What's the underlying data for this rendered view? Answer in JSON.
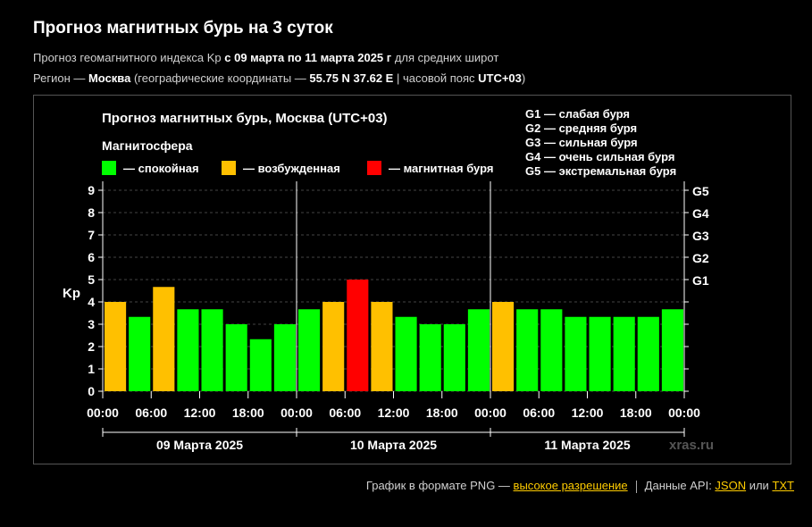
{
  "header": {
    "title": "Прогноз магнитных бурь на 3 суток",
    "line1_a": "Прогноз геомагнитного индекса Kp ",
    "line1_b": "с 09 марта по 11 марта 2025 г",
    "line1_c": " для средних широт",
    "line2_a": "Регион — ",
    "line2_b": "Москва",
    "line2_c": " (географические координаты — ",
    "line2_d": "55.75 N 37.62 E",
    "line2_e": " | часовой пояс ",
    "line2_f": "UTC+03",
    "line2_g": ")"
  },
  "footer": {
    "png_text": "График в формате PNG — ",
    "png_link": "высокое разрешение",
    "api_text": "Данные API: ",
    "json_link": "JSON",
    "or_text": " или ",
    "txt_link": "TXT"
  },
  "colors": {
    "quiet": "#00ff00",
    "unsettled": "#ffc000",
    "storm": "#ff0000",
    "background": "#000000"
  },
  "chart_data": {
    "type": "bar",
    "title": "Прогноз магнитных бурь, Москва (UTC+03)",
    "legend_title": "Магнитосфера",
    "legend": [
      {
        "key": "quiet",
        "label": "— спокойная"
      },
      {
        "key": "unsettled",
        "label": "— возбужденная"
      },
      {
        "key": "storm",
        "label": "— магнитная буря"
      }
    ],
    "g_legend": [
      "G1 — слабая буря",
      "G2 — средняя буря",
      "G3 — сильная буря",
      "G4 — очень сильная буря",
      "G5 — экстремальная буря"
    ],
    "ylabel": "Kp",
    "ylim": [
      0,
      9
    ],
    "yticks": [
      "0",
      "1",
      "2",
      "3",
      "4",
      "5",
      "6",
      "7",
      "8",
      "9"
    ],
    "right_ticks": [
      {
        "value": 5,
        "label": "G1"
      },
      {
        "value": 6,
        "label": "G2"
      },
      {
        "value": 7,
        "label": "G3"
      },
      {
        "value": 8,
        "label": "G4"
      },
      {
        "value": 9,
        "label": "G5"
      }
    ],
    "xtick_labels": [
      "00:00",
      "06:00",
      "12:00",
      "18:00",
      "00:00",
      "06:00",
      "12:00",
      "18:00",
      "00:00",
      "06:00",
      "12:00",
      "18:00",
      "00:00"
    ],
    "days": [
      "09 Марта 2025",
      "10 Марта 2025",
      "11 Марта 2025"
    ],
    "values": [
      4.0,
      3.33,
      4.67,
      3.67,
      3.67,
      3.0,
      2.33,
      3.0,
      3.67,
      4.0,
      5.0,
      4.0,
      3.33,
      3.0,
      3.0,
      3.67,
      4.0,
      3.67,
      3.67,
      3.33,
      3.33,
      3.33,
      3.33,
      3.67
    ],
    "levels": [
      "unsettled",
      "quiet",
      "unsettled",
      "quiet",
      "quiet",
      "quiet",
      "quiet",
      "quiet",
      "quiet",
      "unsettled",
      "storm",
      "unsettled",
      "quiet",
      "quiet",
      "quiet",
      "quiet",
      "unsettled",
      "quiet",
      "quiet",
      "quiet",
      "quiet",
      "quiet",
      "quiet",
      "quiet"
    ],
    "grid": true,
    "watermark": "xras.ru"
  }
}
